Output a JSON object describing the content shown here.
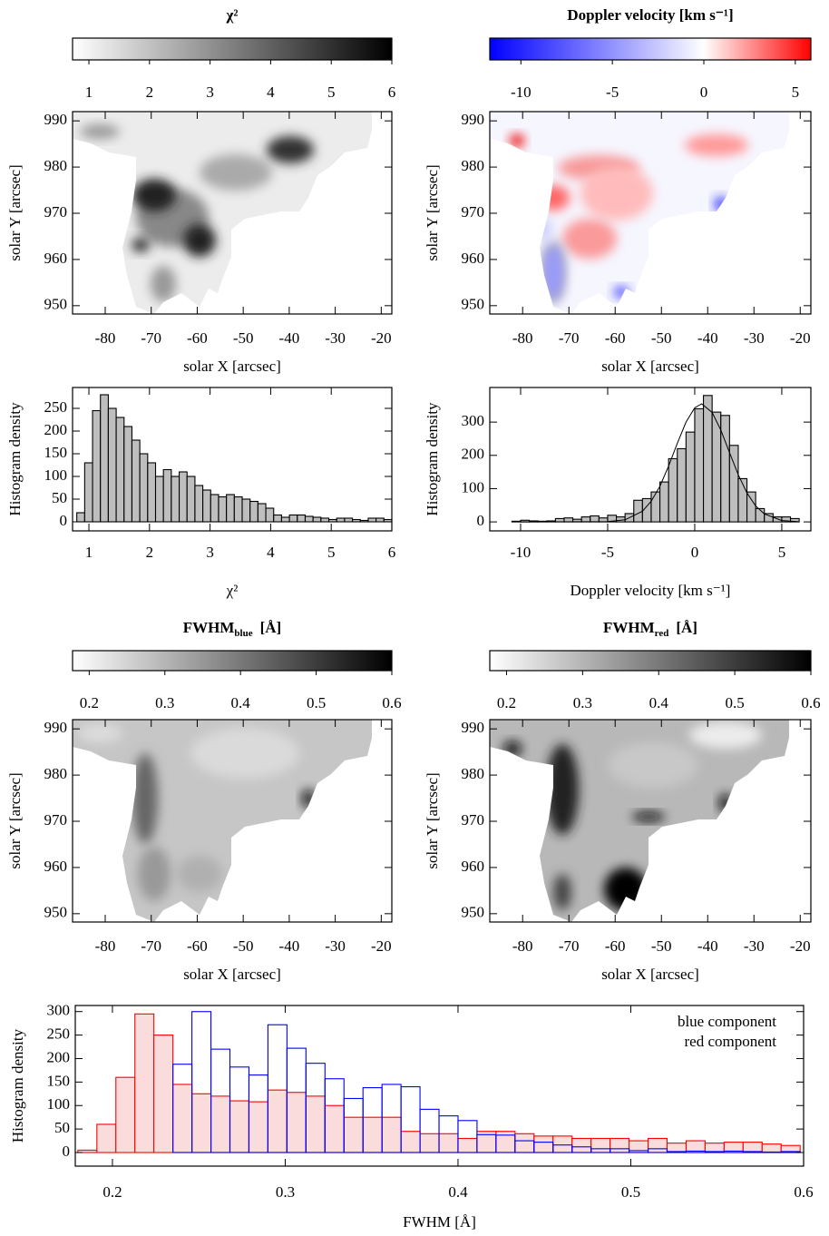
{
  "chart_data": [
    {
      "type": "colorbar",
      "title": "χ²",
      "xlim": [
        0.73,
        6
      ],
      "xticks": [
        1,
        2,
        3,
        4,
        5,
        6
      ],
      "colormap": [
        "#ffffff",
        "#000000"
      ]
    },
    {
      "type": "colorbar",
      "title": "Doppler velocity  [km s⁻¹]",
      "xlim": [
        -11.7,
        5.85
      ],
      "xticks": [
        -10,
        -5,
        0,
        5
      ],
      "colormap": [
        "#0000ff",
        "#ffffff",
        "#ff0000"
      ],
      "colormap_stops": [
        -11.7,
        0,
        5.85
      ]
    },
    {
      "type": "map",
      "xlabel": "solar X  [arcsec]",
      "ylabel": "solar Y  [arcsec]",
      "xlim": [
        -87.1,
        -17.7
      ],
      "ylim": [
        948.2,
        992
      ],
      "xticks": [
        -80,
        -70,
        -60,
        -50,
        -40,
        -30,
        -20
      ],
      "yticks": [
        950,
        960,
        970,
        980,
        990
      ]
    },
    {
      "type": "map",
      "xlabel": "solar X  [arcsec]",
      "ylabel": "solar Y  [arcsec]",
      "xlim": [
        -87.1,
        -17.7
      ],
      "ylim": [
        948.2,
        992
      ],
      "xticks": [
        -80,
        -70,
        -60,
        -50,
        -40,
        -30,
        -20
      ],
      "yticks": [
        950,
        960,
        970,
        980,
        990
      ]
    },
    {
      "type": "histogram",
      "xlabel": "χ²",
      "ylabel": "Histogram density",
      "color": "#bebebe",
      "bins": [
        0.8,
        0.93,
        1.06,
        1.19,
        1.32,
        1.45,
        1.58,
        1.71,
        1.84,
        1.97,
        2.1,
        2.23,
        2.36,
        2.49,
        2.62,
        2.75,
        2.88,
        3.01,
        3.14,
        3.27,
        3.4,
        3.53,
        3.66,
        3.79,
        3.92,
        4.05,
        4.18,
        4.31,
        4.44,
        4.57,
        4.7,
        4.83,
        4.96,
        5.09,
        5.22,
        5.35,
        5.48,
        5.61,
        5.74,
        5.87,
        6.0
      ],
      "values": [
        20,
        130,
        245,
        280,
        250,
        230,
        210,
        180,
        150,
        130,
        100,
        115,
        100,
        110,
        100,
        80,
        70,
        60,
        55,
        60,
        55,
        50,
        45,
        40,
        30,
        15,
        10,
        15,
        15,
        12,
        10,
        8,
        5,
        8,
        8,
        5,
        3,
        8,
        8,
        5
      ],
      "xlim": [
        0.73,
        6
      ],
      "ylim": [
        -20,
        296
      ],
      "xticks": [
        1,
        2,
        3,
        4,
        5,
        6
      ],
      "yticks": [
        0,
        50,
        100,
        150,
        200,
        250
      ]
    },
    {
      "type": "histogram",
      "xlabel": "Doppler velocity  [km s⁻¹]",
      "ylabel": "Histogram density",
      "color": "#bebebe",
      "bins": [
        -11,
        -10.5,
        -10,
        -9.5,
        -9,
        -8.5,
        -8,
        -7.5,
        -7,
        -6.5,
        -6,
        -5.5,
        -5,
        -4.5,
        -4,
        -3.5,
        -3,
        -2.5,
        -2,
        -1.5,
        -1,
        -0.5,
        0,
        0.5,
        1,
        1.5,
        2,
        2.5,
        3,
        3.5,
        4,
        4.5,
        5,
        5.5,
        6
      ],
      "values": [
        0,
        2,
        5,
        3,
        2,
        3,
        10,
        12,
        8,
        15,
        18,
        12,
        20,
        15,
        25,
        65,
        70,
        90,
        120,
        190,
        220,
        270,
        340,
        380,
        330,
        320,
        230,
        130,
        90,
        40,
        25,
        15,
        15,
        10
      ],
      "fit": {
        "x": [
          -10,
          -5,
          -4,
          -3,
          -2.5,
          -2,
          -1.5,
          -1,
          -0.5,
          0,
          0.4,
          1,
          1.5,
          2,
          2.5,
          3,
          3.5,
          4,
          5,
          6
        ],
        "y": [
          0,
          0.8,
          6.3,
          32,
          62,
          107,
          168,
          236,
          300,
          343,
          355,
          329,
          276,
          208,
          142,
          87,
          48,
          24,
          4,
          0.5
        ]
      },
      "xlim": [
        -11.77,
        6.67
      ],
      "ylim": [
        -27,
        404
      ],
      "xticks": [
        -10,
        -5,
        0,
        5
      ],
      "yticks": [
        0,
        100,
        200,
        300
      ]
    },
    {
      "type": "colorbar",
      "title": "FWHM",
      "title_subscript": "blue",
      "title_suffix": "[Å]",
      "xlim": [
        0.178,
        0.6
      ],
      "xticks": [
        0.2,
        0.3,
        0.4,
        0.5,
        0.6
      ],
      "colormap": [
        "#ffffff",
        "#000000"
      ]
    },
    {
      "type": "colorbar",
      "title": "FWHM",
      "title_subscript": "red",
      "title_suffix": "[Å]",
      "xlim": [
        0.178,
        0.6
      ],
      "xticks": [
        0.2,
        0.3,
        0.4,
        0.5,
        0.6
      ],
      "colormap": [
        "#ffffff",
        "#000000"
      ]
    },
    {
      "type": "map",
      "xlabel": "solar X  [arcsec]",
      "ylabel": "solar Y  [arcsec]",
      "xlim": [
        -87.1,
        -17.7
      ],
      "ylim": [
        948.2,
        992
      ],
      "xticks": [
        -80,
        -70,
        -60,
        -50,
        -40,
        -30,
        -20
      ],
      "yticks": [
        950,
        960,
        970,
        980,
        990
      ]
    },
    {
      "type": "map",
      "xlabel": "solar X  [arcsec]",
      "ylabel": "solar Y  [arcsec]",
      "xlim": [
        -87.1,
        -17.7
      ],
      "ylim": [
        948.2,
        992
      ],
      "xticks": [
        -80,
        -70,
        -60,
        -50,
        -40,
        -30,
        -20
      ],
      "yticks": [
        950,
        960,
        970,
        980,
        990
      ]
    },
    {
      "type": "histogram",
      "xlabel": "FWHM  [Å]",
      "ylabel": "Histogram density",
      "legend": "upper right",
      "bins": [
        0.18,
        0.191,
        0.202,
        0.213,
        0.224,
        0.235,
        0.246,
        0.257,
        0.268,
        0.279,
        0.29,
        0.301,
        0.312,
        0.323,
        0.334,
        0.345,
        0.356,
        0.367,
        0.378,
        0.389,
        0.4,
        0.411,
        0.422,
        0.433,
        0.444,
        0.455,
        0.466,
        0.477,
        0.488,
        0.499,
        0.51,
        0.521,
        0.532,
        0.543,
        0.554,
        0.565,
        0.576,
        0.587,
        0.598
      ],
      "series": [
        {
          "name": "red component",
          "color": "#ff0000",
          "fill": "#fbdcdc",
          "values": [
            5,
            60,
            160,
            295,
            250,
            145,
            125,
            120,
            110,
            108,
            133,
            128,
            120,
            100,
            75,
            75,
            75,
            45,
            40,
            40,
            30,
            45,
            45,
            40,
            35,
            35,
            30,
            30,
            30,
            25,
            30,
            20,
            25,
            20,
            22,
            22,
            18,
            15
          ]
        },
        {
          "name": "blue component",
          "color": "#0000ff",
          "fill": "none",
          "values": [
            0,
            0,
            0,
            0,
            0,
            188,
            300,
            220,
            182,
            165,
            272,
            222,
            190,
            157,
            115,
            138,
            145,
            140,
            92,
            78,
            68,
            38,
            37,
            25,
            22,
            16,
            12,
            8,
            8,
            4,
            8,
            2,
            3,
            2,
            3,
            2,
            1,
            2
          ]
        }
      ],
      "xlim": [
        0.1785,
        0.6
      ],
      "ylim": [
        -29,
        313
      ],
      "xticks": [
        0.2,
        0.3,
        0.4,
        0.5,
        0.6
      ],
      "yticks": [
        0,
        50,
        100,
        150,
        200,
        250,
        300
      ]
    }
  ]
}
